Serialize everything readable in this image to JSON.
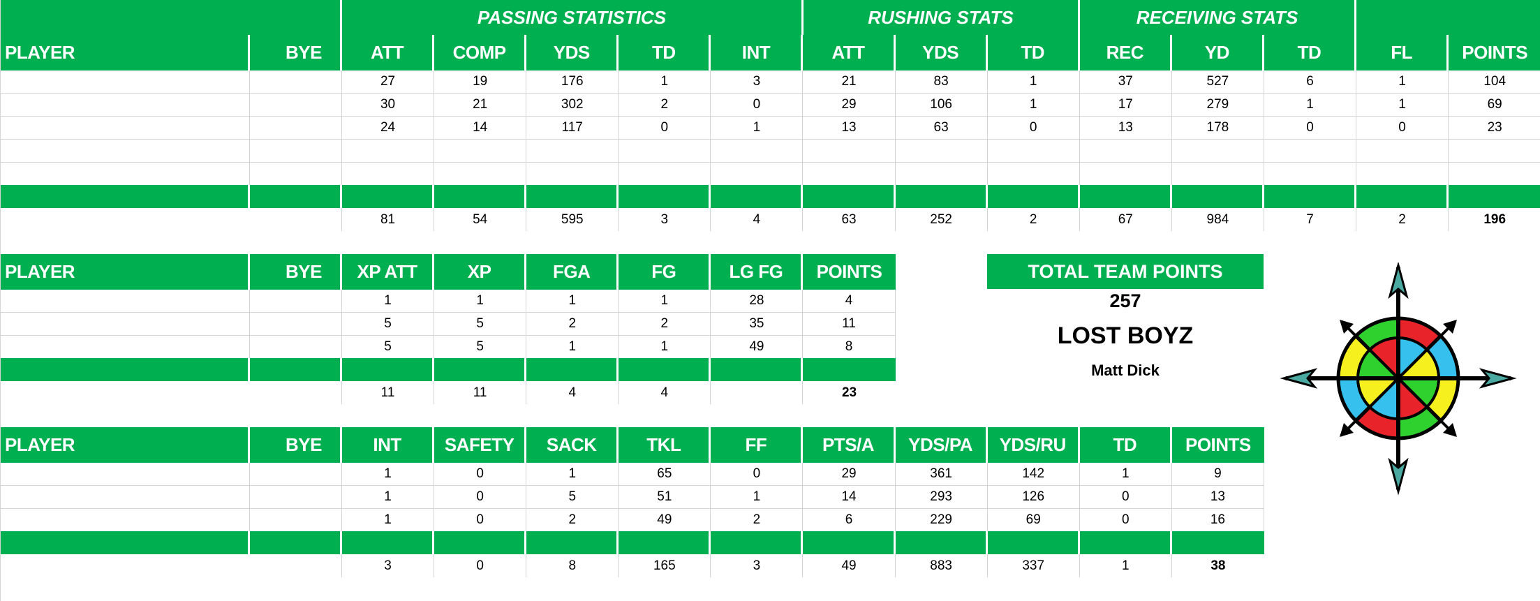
{
  "offense": {
    "categories": [
      {
        "label": "",
        "span": "player-bye"
      },
      {
        "label": "PASSING STATISTICS"
      },
      {
        "label": "RUSHING STATS"
      },
      {
        "label": "RECEIVING STATS"
      },
      {
        "label": ""
      }
    ],
    "headers": [
      "PLAYER",
      "BYE",
      "ATT",
      "COMP",
      "YDS",
      "TD",
      "INT",
      "ATT",
      "YDS",
      "TD",
      "REC",
      "YD",
      "TD",
      "FL",
      "POINTS"
    ],
    "rows": [
      [
        "",
        "",
        "27",
        "19",
        "176",
        "1",
        "3",
        "21",
        "83",
        "1",
        "37",
        "527",
        "6",
        "1",
        "104"
      ],
      [
        "",
        "",
        "30",
        "21",
        "302",
        "2",
        "0",
        "29",
        "106",
        "1",
        "17",
        "279",
        "1",
        "1",
        "69"
      ],
      [
        "",
        "",
        "24",
        "14",
        "117",
        "0",
        "1",
        "13",
        "63",
        "0",
        "13",
        "178",
        "0",
        "0",
        "23"
      ],
      [
        "",
        "",
        "",
        "",
        "",
        "",
        "",
        "",
        "",
        "",
        "",
        "",
        "",
        "",
        ""
      ],
      [
        "",
        "",
        "",
        "",
        "",
        "",
        "",
        "",
        "",
        "",
        "",
        "",
        "",
        "",
        ""
      ]
    ],
    "totals": [
      "",
      "",
      "81",
      "54",
      "595",
      "3",
      "4",
      "63",
      "252",
      "2",
      "67",
      "984",
      "7",
      "2",
      "196"
    ]
  },
  "kicking": {
    "headers": [
      "PLAYER",
      "BYE",
      "XP ATT",
      "XP",
      "FGA",
      "FG",
      "LG FG",
      "POINTS"
    ],
    "rows": [
      [
        "",
        "",
        "1",
        "1",
        "1",
        "1",
        "28",
        "4"
      ],
      [
        "",
        "",
        "5",
        "5",
        "2",
        "2",
        "35",
        "11"
      ],
      [
        "",
        "",
        "5",
        "5",
        "1",
        "1",
        "49",
        "8"
      ]
    ],
    "totals": [
      "",
      "",
      "11",
      "11",
      "4",
      "4",
      "",
      "23"
    ]
  },
  "defense": {
    "headers": [
      "PLAYER",
      "BYE",
      "INT",
      "SAFETY",
      "SACK",
      "TKL",
      "FF",
      "PTS/A",
      "YDS/PA",
      "YDS/RU",
      "TD",
      "POINTS"
    ],
    "rows": [
      [
        "",
        "",
        "1",
        "0",
        "1",
        "65",
        "0",
        "29",
        "361",
        "142",
        "1",
        "9"
      ],
      [
        "",
        "",
        "1",
        "0",
        "5",
        "51",
        "1",
        "14",
        "293",
        "126",
        "0",
        "13"
      ],
      [
        "",
        "",
        "1",
        "0",
        "2",
        "49",
        "2",
        "6",
        "229",
        "69",
        "0",
        "16"
      ]
    ],
    "totals": [
      "",
      "",
      "3",
      "0",
      "8",
      "165",
      "3",
      "49",
      "883",
      "337",
      "1",
      "38"
    ]
  },
  "team": {
    "total_label": "TOTAL TEAM POINTS",
    "total_points": "257",
    "name": "LOST BOYZ",
    "owner": "Matt Dick",
    "logo_icon": "compass-rose-icon"
  },
  "colors": {
    "header_green": "#00b050",
    "gridline": "#d4d4d4",
    "compass_red": "#e8242a",
    "compass_green": "#2fd12f",
    "compass_yellow": "#f5f01e",
    "compass_blue": "#35c0ee"
  }
}
